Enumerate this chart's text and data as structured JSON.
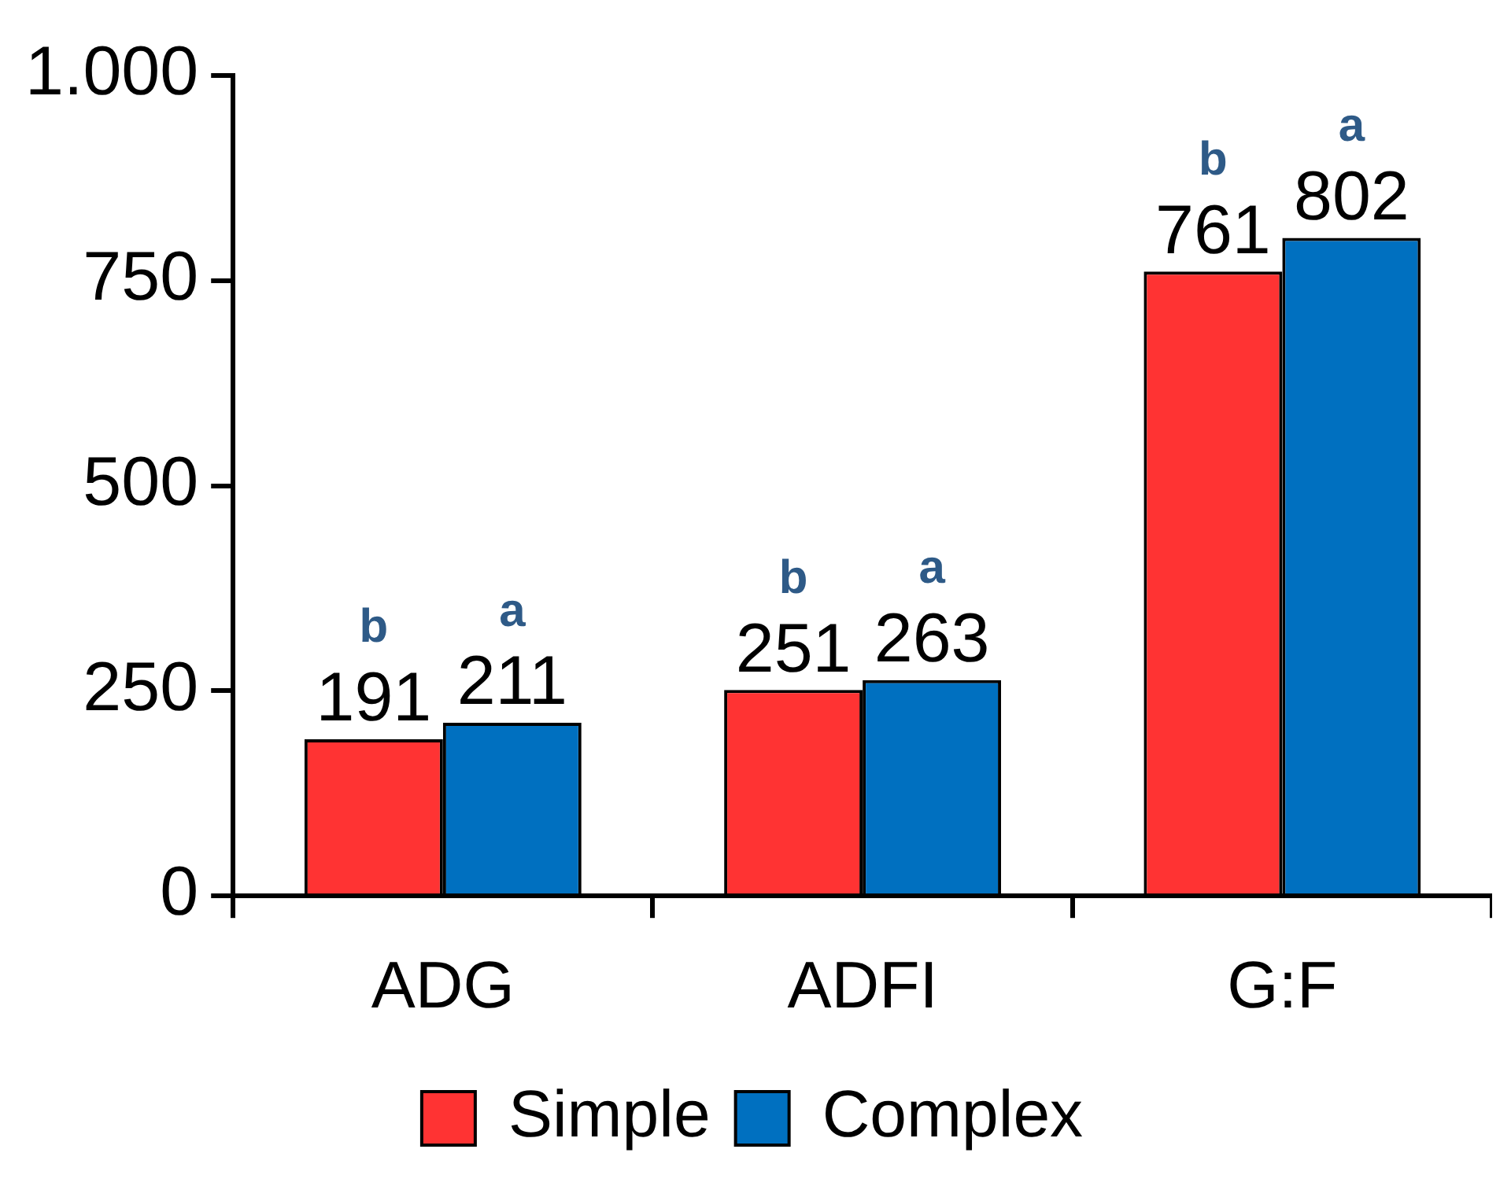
{
  "chart_data": {
    "type": "bar",
    "categories": [
      "ADG",
      "ADFI",
      "G:F"
    ],
    "series": [
      {
        "name": "Simple",
        "color": "#ff3333",
        "values": [
          191,
          251,
          761
        ]
      },
      {
        "name": "Complex",
        "color": "#0070c0",
        "values": [
          211,
          263,
          802
        ]
      }
    ],
    "ylim": [
      0,
      1000
    ],
    "yticks": [
      0,
      250,
      500,
      750,
      {
        "value": 1000,
        "label": "1.000"
      }
    ],
    "data_labels": true,
    "grid": false,
    "legend": "bottom",
    "annotations": [
      "b",
      "a",
      "b",
      "a",
      "b",
      "a"
    ]
  }
}
